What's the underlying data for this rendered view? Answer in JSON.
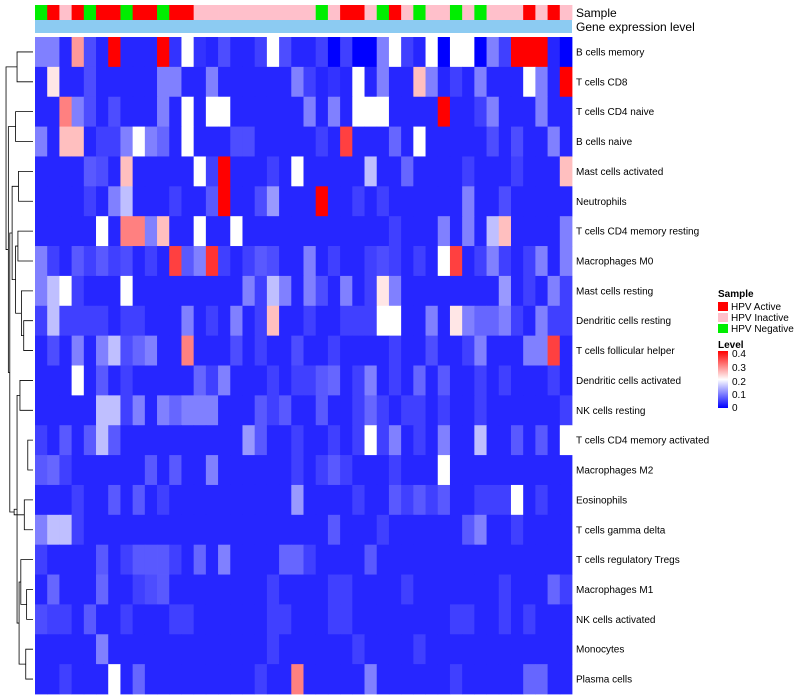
{
  "chart_data": {
    "type": "heatmap",
    "annotation_labels": {
      "sample": "Sample",
      "gene_expression": "Gene expression level"
    },
    "sample_legend": {
      "title": "Sample",
      "entries": [
        {
          "label": "HPV Active",
          "color": "#FF0000"
        },
        {
          "label": "HPV Inactive",
          "color": "#FFC0CB"
        },
        {
          "label": "HPV Negative",
          "color": "#00EE00"
        }
      ]
    },
    "level_legend": {
      "title": "Level",
      "ticks": [
        "0.4",
        "0.3",
        "0.2",
        "0.1",
        "0"
      ],
      "range": [
        0,
        0.4
      ],
      "colors": [
        "#0000FF",
        "#FFFFFF",
        "#FF0000"
      ]
    },
    "gene_expression_color": "#8CCBF2",
    "sample_groups": [
      2,
      0,
      1,
      0,
      2,
      0,
      0,
      2,
      0,
      0,
      2,
      0,
      0,
      1,
      1,
      1,
      1,
      1,
      1,
      1,
      1,
      1,
      1,
      2,
      1,
      0,
      0,
      1,
      2,
      0,
      1,
      2,
      1,
      1,
      2,
      1,
      2,
      1,
      1,
      1,
      0,
      1,
      0,
      1
    ],
    "rows": [
      "B cells memory",
      "T cells CD8",
      "T cells CD4 naive",
      "B cells naive",
      "Mast cells activated",
      "Neutrophils",
      "T cells CD4 memory resting",
      "Macrophages M0",
      "Mast cells resting",
      "Dendritic cells resting",
      "T cells follicular helper",
      "Dendritic cells activated",
      "NK cells resting",
      "T cells CD4 memory activated",
      "Macrophages M2",
      "Eosinophils",
      "T cells gamma delta",
      "T cells regulatory  Tregs",
      "Macrophages M1",
      "NK cells activated",
      "Monocytes",
      "Plasma cells"
    ],
    "values": [
      [
        0.1,
        0.1,
        0.03,
        0.28,
        0.06,
        0.03,
        0.4,
        0.03,
        0.03,
        0.03,
        0.4,
        0.04,
        0.2,
        0.04,
        0.03,
        0.06,
        0.03,
        0.03,
        0.05,
        0.2,
        0.06,
        0.03,
        0.03,
        0.05,
        0.0,
        0.05,
        0.0,
        0.0,
        0.1,
        0.2,
        0.05,
        0.03,
        0.2,
        0.0,
        0.2,
        0.2,
        0.0,
        0.1,
        0.05,
        0.4,
        0.4,
        0.4,
        0.03,
        0.0
      ],
      [
        0.03,
        0.22,
        0.03,
        0.03,
        0.06,
        0.03,
        0.03,
        0.03,
        0.03,
        0.03,
        0.1,
        0.1,
        0.03,
        0.03,
        0.1,
        0.03,
        0.03,
        0.03,
        0.03,
        0.03,
        0.03,
        0.1,
        0.05,
        0.03,
        0.04,
        0.03,
        0.2,
        0.03,
        0.1,
        0.03,
        0.03,
        0.25,
        0.1,
        0.03,
        0.05,
        0.03,
        0.1,
        0.03,
        0.03,
        0.03,
        0.2,
        0.1,
        0.03,
        0.4
      ],
      [
        0.03,
        0.03,
        0.3,
        0.1,
        0.06,
        0.03,
        0.06,
        0.03,
        0.03,
        0.03,
        0.1,
        0.03,
        0.2,
        0.03,
        0.2,
        0.2,
        0.03,
        0.03,
        0.03,
        0.03,
        0.03,
        0.03,
        0.1,
        0.03,
        0.1,
        0.03,
        0.2,
        0.2,
        0.2,
        0.03,
        0.03,
        0.03,
        0.03,
        0.4,
        0.03,
        0.03,
        0.05,
        0.1,
        0.03,
        0.03,
        0.03,
        0.1,
        0.03,
        0.03
      ],
      [
        0.1,
        0.03,
        0.25,
        0.25,
        0.03,
        0.05,
        0.05,
        0.1,
        0.2,
        0.1,
        0.08,
        0.03,
        0.2,
        0.03,
        0.03,
        0.03,
        0.06,
        0.06,
        0.03,
        0.03,
        0.03,
        0.03,
        0.03,
        0.05,
        0.03,
        0.35,
        0.03,
        0.03,
        0.03,
        0.08,
        0.03,
        0.2,
        0.03,
        0.03,
        0.03,
        0.03,
        0.03,
        0.06,
        0.03,
        0.06,
        0.03,
        0.03,
        0.1,
        0.03
      ],
      [
        0.03,
        0.03,
        0.03,
        0.03,
        0.07,
        0.06,
        0.03,
        0.25,
        0.03,
        0.03,
        0.03,
        0.03,
        0.03,
        0.2,
        0.05,
        0.4,
        0.03,
        0.03,
        0.03,
        0.05,
        0.03,
        0.2,
        0.03,
        0.03,
        0.03,
        0.03,
        0.03,
        0.15,
        0.03,
        0.03,
        0.08,
        0.03,
        0.03,
        0.03,
        0.03,
        0.05,
        0.03,
        0.03,
        0.03,
        0.05,
        0.03,
        0.03,
        0.03,
        0.25
      ],
      [
        0.03,
        0.03,
        0.03,
        0.03,
        0.05,
        0.03,
        0.1,
        0.15,
        0.03,
        0.03,
        0.03,
        0.05,
        0.03,
        0.03,
        0.07,
        0.4,
        0.03,
        0.03,
        0.06,
        0.12,
        0.03,
        0.03,
        0.03,
        0.4,
        0.03,
        0.03,
        0.05,
        0.03,
        0.05,
        0.03,
        0.03,
        0.03,
        0.03,
        0.03,
        0.03,
        0.1,
        0.03,
        0.03,
        0.06,
        0.03,
        0.03,
        0.03,
        0.03,
        0.03
      ],
      [
        0.03,
        0.03,
        0.03,
        0.03,
        0.03,
        0.2,
        0.03,
        0.3,
        0.3,
        0.1,
        0.25,
        0.03,
        0.03,
        0.2,
        0.03,
        0.03,
        0.2,
        0.03,
        0.03,
        0.03,
        0.03,
        0.03,
        0.03,
        0.03,
        0.03,
        0.03,
        0.03,
        0.03,
        0.03,
        0.05,
        0.03,
        0.03,
        0.03,
        0.1,
        0.03,
        0.1,
        0.03,
        0.15,
        0.25,
        0.03,
        0.03,
        0.03,
        0.03,
        0.1
      ],
      [
        0.1,
        0.05,
        0.03,
        0.07,
        0.05,
        0.07,
        0.05,
        0.06,
        0.03,
        0.05,
        0.03,
        0.35,
        0.07,
        0.1,
        0.36,
        0.05,
        0.03,
        0.05,
        0.07,
        0.06,
        0.03,
        0.03,
        0.1,
        0.03,
        0.05,
        0.03,
        0.03,
        0.05,
        0.06,
        0.05,
        0.03,
        0.05,
        0.03,
        0.2,
        0.35,
        0.03,
        0.05,
        0.1,
        0.05,
        0.03,
        0.05,
        0.1,
        0.03,
        0.1
      ],
      [
        0.1,
        0.15,
        0.2,
        0.05,
        0.03,
        0.03,
        0.03,
        0.2,
        0.03,
        0.03,
        0.03,
        0.03,
        0.03,
        0.03,
        0.03,
        0.03,
        0.03,
        0.1,
        0.05,
        0.15,
        0.1,
        0.03,
        0.1,
        0.06,
        0.03,
        0.1,
        0.03,
        0.05,
        0.22,
        0.1,
        0.03,
        0.03,
        0.03,
        0.03,
        0.03,
        0.03,
        0.03,
        0.03,
        0.12,
        0.03,
        0.05,
        0.03,
        0.1,
        0.05
      ],
      [
        0.05,
        0.15,
        0.05,
        0.05,
        0.05,
        0.05,
        0.03,
        0.05,
        0.05,
        0.03,
        0.03,
        0.03,
        0.1,
        0.03,
        0.05,
        0.03,
        0.1,
        0.03,
        0.05,
        0.25,
        0.03,
        0.03,
        0.05,
        0.03,
        0.03,
        0.05,
        0.05,
        0.05,
        0.2,
        0.2,
        0.03,
        0.03,
        0.1,
        0.03,
        0.22,
        0.1,
        0.08,
        0.08,
        0.1,
        0.05,
        0.03,
        0.1,
        0.05,
        0.05
      ],
      [
        0.03,
        0.06,
        0.03,
        0.1,
        0.03,
        0.1,
        0.15,
        0.06,
        0.08,
        0.1,
        0.03,
        0.03,
        0.3,
        0.03,
        0.03,
        0.03,
        0.06,
        0.03,
        0.05,
        0.03,
        0.03,
        0.06,
        0.03,
        0.03,
        0.05,
        0.03,
        0.03,
        0.03,
        0.03,
        0.05,
        0.03,
        0.03,
        0.06,
        0.03,
        0.03,
        0.05,
        0.1,
        0.03,
        0.03,
        0.03,
        0.1,
        0.1,
        0.35,
        0.03
      ],
      [
        0.03,
        0.03,
        0.03,
        0.2,
        0.03,
        0.07,
        0.03,
        0.05,
        0.03,
        0.03,
        0.03,
        0.03,
        0.03,
        0.08,
        0.05,
        0.1,
        0.03,
        0.03,
        0.03,
        0.05,
        0.03,
        0.05,
        0.05,
        0.07,
        0.08,
        0.03,
        0.05,
        0.1,
        0.03,
        0.05,
        0.03,
        0.08,
        0.03,
        0.07,
        0.03,
        0.03,
        0.05,
        0.03,
        0.05,
        0.03,
        0.03,
        0.03,
        0.05,
        0.03
      ],
      [
        0.03,
        0.03,
        0.03,
        0.03,
        0.03,
        0.15,
        0.15,
        0.05,
        0.1,
        0.03,
        0.1,
        0.08,
        0.1,
        0.1,
        0.1,
        0.03,
        0.03,
        0.03,
        0.07,
        0.05,
        0.07,
        0.03,
        0.03,
        0.07,
        0.03,
        0.03,
        0.05,
        0.08,
        0.05,
        0.03,
        0.05,
        0.05,
        0.03,
        0.05,
        0.03,
        0.03,
        0.05,
        0.03,
        0.03,
        0.03,
        0.03,
        0.03,
        0.03,
        0.05
      ],
      [
        0.05,
        0.03,
        0.07,
        0.03,
        0.07,
        0.15,
        0.07,
        0.03,
        0.03,
        0.03,
        0.03,
        0.03,
        0.03,
        0.03,
        0.03,
        0.03,
        0.03,
        0.12,
        0.07,
        0.03,
        0.03,
        0.05,
        0.03,
        0.03,
        0.05,
        0.03,
        0.05,
        0.2,
        0.05,
        0.1,
        0.03,
        0.05,
        0.03,
        0.1,
        0.03,
        0.03,
        0.15,
        0.03,
        0.03,
        0.07,
        0.03,
        0.07,
        0.03,
        0.2
      ],
      [
        0.07,
        0.08,
        0.05,
        0.03,
        0.03,
        0.03,
        0.03,
        0.03,
        0.03,
        0.07,
        0.03,
        0.07,
        0.03,
        0.03,
        0.1,
        0.03,
        0.03,
        0.03,
        0.03,
        0.03,
        0.03,
        0.05,
        0.03,
        0.05,
        0.07,
        0.05,
        0.03,
        0.03,
        0.03,
        0.05,
        0.03,
        0.03,
        0.03,
        0.2,
        0.03,
        0.03,
        0.03,
        0.03,
        0.03,
        0.03,
        0.03,
        0.03,
        0.03,
        0.03
      ],
      [
        0.03,
        0.03,
        0.03,
        0.05,
        0.03,
        0.03,
        0.07,
        0.03,
        0.07,
        0.03,
        0.05,
        0.03,
        0.03,
        0.03,
        0.03,
        0.03,
        0.03,
        0.03,
        0.03,
        0.03,
        0.03,
        0.12,
        0.03,
        0.03,
        0.03,
        0.03,
        0.05,
        0.03,
        0.03,
        0.07,
        0.05,
        0.07,
        0.05,
        0.07,
        0.03,
        0.03,
        0.05,
        0.05,
        0.05,
        0.2,
        0.03,
        0.05,
        0.03,
        0.03
      ],
      [
        0.1,
        0.15,
        0.15,
        0.05,
        0.03,
        0.03,
        0.03,
        0.03,
        0.03,
        0.03,
        0.03,
        0.03,
        0.03,
        0.03,
        0.03,
        0.03,
        0.03,
        0.03,
        0.03,
        0.03,
        0.03,
        0.03,
        0.03,
        0.03,
        0.07,
        0.03,
        0.03,
        0.03,
        0.05,
        0.03,
        0.03,
        0.03,
        0.03,
        0.03,
        0.03,
        0.07,
        0.1,
        0.03,
        0.03,
        0.05,
        0.03,
        0.03,
        0.03,
        0.03
      ],
      [
        0.05,
        0.03,
        0.03,
        0.03,
        0.03,
        0.07,
        0.03,
        0.05,
        0.07,
        0.07,
        0.07,
        0.05,
        0.03,
        0.08,
        0.03,
        0.1,
        0.03,
        0.03,
        0.03,
        0.03,
        0.08,
        0.08,
        0.05,
        0.03,
        0.03,
        0.03,
        0.03,
        0.07,
        0.03,
        0.03,
        0.03,
        0.03,
        0.03,
        0.03,
        0.03,
        0.03,
        0.03,
        0.03,
        0.03,
        0.03,
        0.03,
        0.03,
        0.03,
        0.03
      ],
      [
        0.03,
        0.08,
        0.03,
        0.03,
        0.03,
        0.08,
        0.03,
        0.03,
        0.05,
        0.06,
        0.07,
        0.03,
        0.03,
        0.03,
        0.03,
        0.03,
        0.03,
        0.03,
        0.03,
        0.05,
        0.03,
        0.03,
        0.03,
        0.03,
        0.05,
        0.05,
        0.03,
        0.03,
        0.03,
        0.03,
        0.05,
        0.03,
        0.03,
        0.03,
        0.03,
        0.03,
        0.03,
        0.03,
        0.05,
        0.03,
        0.03,
        0.03,
        0.08,
        0.05
      ],
      [
        0.06,
        0.05,
        0.05,
        0.03,
        0.07,
        0.03,
        0.03,
        0.05,
        0.03,
        0.03,
        0.03,
        0.05,
        0.05,
        0.03,
        0.03,
        0.03,
        0.03,
        0.03,
        0.03,
        0.05,
        0.05,
        0.03,
        0.03,
        0.03,
        0.05,
        0.05,
        0.03,
        0.03,
        0.03,
        0.03,
        0.03,
        0.03,
        0.03,
        0.03,
        0.05,
        0.05,
        0.03,
        0.03,
        0.05,
        0.03,
        0.05,
        0.03,
        0.03,
        0.03
      ],
      [
        0.03,
        0.03,
        0.03,
        0.03,
        0.03,
        0.1,
        0.03,
        0.03,
        0.03,
        0.03,
        0.03,
        0.03,
        0.03,
        0.03,
        0.03,
        0.03,
        0.03,
        0.03,
        0.03,
        0.05,
        0.03,
        0.03,
        0.03,
        0.03,
        0.03,
        0.03,
        0.05,
        0.03,
        0.03,
        0.03,
        0.03,
        0.05,
        0.03,
        0.03,
        0.03,
        0.03,
        0.03,
        0.03,
        0.03,
        0.03,
        0.03,
        0.03,
        0.03,
        0.03
      ],
      [
        0.03,
        0.03,
        0.05,
        0.03,
        0.03,
        0.03,
        0.2,
        0.03,
        0.08,
        0.03,
        0.03,
        0.03,
        0.03,
        0.03,
        0.03,
        0.03,
        0.03,
        0.03,
        0.05,
        0.03,
        0.03,
        0.3,
        0.03,
        0.03,
        0.03,
        0.03,
        0.03,
        0.1,
        0.03,
        0.03,
        0.03,
        0.03,
        0.03,
        0.03,
        0.05,
        0.03,
        0.03,
        0.03,
        0.03,
        0.03,
        0.08,
        0.08,
        0.03,
        0.03
      ]
    ]
  }
}
